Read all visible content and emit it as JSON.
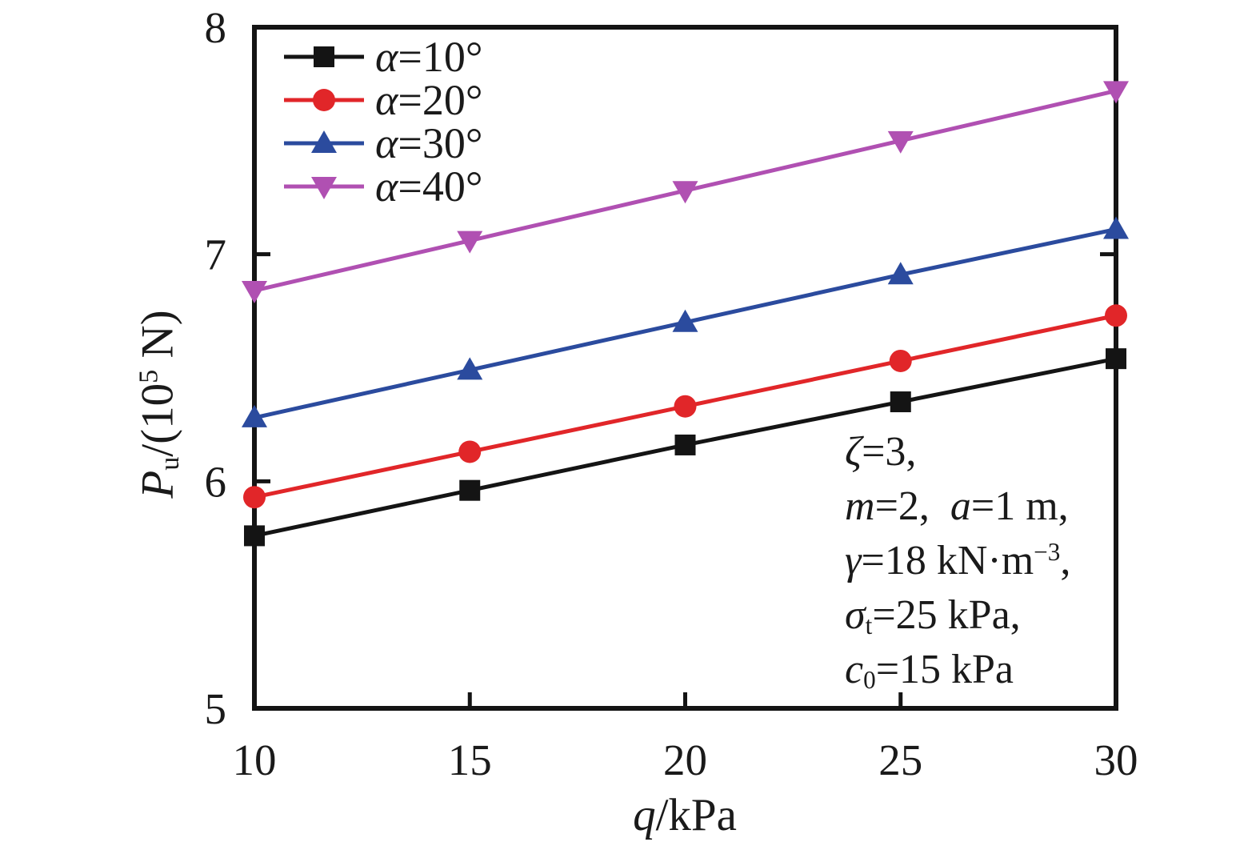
{
  "figure": {
    "background": "#ffffff",
    "text_color": "#1a1a1a",
    "frame_color": "#141414"
  },
  "chart_data": {
    "type": "line",
    "title": "",
    "x": [
      10,
      15,
      20,
      25,
      30
    ],
    "xlim": [
      10,
      30
    ],
    "ylim": [
      5,
      8
    ],
    "grid": false,
    "legend_position": "top-left-inside",
    "xlabel": "q/kPa",
    "ylabel": "Pu/(10^5 N)",
    "xlabel_segments": [
      {
        "t": "q",
        "i": true
      },
      {
        "t": "/kPa"
      }
    ],
    "ylabel_segments": [
      {
        "t": "P",
        "i": true
      },
      {
        "t": "u",
        "sub": true
      },
      {
        "t": "/(10"
      },
      {
        "t": "5",
        "sup": true
      },
      {
        "t": " N)"
      }
    ],
    "x_ticks": {
      "values": [
        10,
        15,
        20,
        25,
        30
      ],
      "labels": [
        "10",
        "15",
        "20",
        "25",
        "30"
      ],
      "marks": [
        15,
        20,
        25
      ]
    },
    "y_ticks": {
      "values": [
        5,
        6,
        7,
        8
      ],
      "labels": [
        "5",
        "6",
        "7",
        "8"
      ],
      "marks_left": [
        6,
        7
      ],
      "marks_right": [
        7
      ]
    },
    "series": [
      {
        "name": "alpha-10",
        "label": "α=10°",
        "label_segments": [
          {
            "t": "α",
            "i": true
          },
          {
            "t": "=10°"
          }
        ],
        "color": "#141414",
        "marker": "square",
        "values": [
          5.76,
          5.96,
          6.16,
          6.35,
          6.54
        ]
      },
      {
        "name": "alpha-20",
        "label": "α=20°",
        "label_segments": [
          {
            "t": "α",
            "i": true
          },
          {
            "t": "=20°"
          }
        ],
        "color": "#e12629",
        "marker": "circle",
        "values": [
          5.93,
          6.13,
          6.33,
          6.53,
          6.73
        ]
      },
      {
        "name": "alpha-30",
        "label": "α=30°",
        "label_segments": [
          {
            "t": "α",
            "i": true
          },
          {
            "t": "=30°"
          }
        ],
        "color": "#2b4b9e",
        "marker": "triangle-up",
        "values": [
          6.28,
          6.49,
          6.7,
          6.91,
          7.11
        ]
      },
      {
        "name": "alpha-40",
        "label": "α=40°",
        "label_segments": [
          {
            "t": "α",
            "i": true
          },
          {
            "t": "=40°"
          }
        ],
        "color": "#b050b2",
        "marker": "triangle-down",
        "values": [
          6.84,
          7.06,
          7.28,
          7.5,
          7.72
        ]
      }
    ],
    "annotation_lines": [
      [
        {
          "t": "ζ",
          "i": true
        },
        {
          "t": "=3, "
        }
      ],
      [
        {
          "t": "m",
          "i": true
        },
        {
          "t": "=2,  "
        },
        {
          "t": "a",
          "i": true
        },
        {
          "t": "=1 m, "
        }
      ],
      [
        {
          "t": "γ",
          "i": true
        },
        {
          "t": "=18 kN·m"
        },
        {
          "t": "−3",
          "sup": true
        },
        {
          "t": ", "
        }
      ],
      [
        {
          "t": "σ",
          "i": true
        },
        {
          "t": "t",
          "sub": true
        },
        {
          "t": "=25 kPa, "
        }
      ],
      [
        {
          "t": "c",
          "i": true
        },
        {
          "t": "0",
          "sub": true
        },
        {
          "t": "=15 kPa"
        }
      ]
    ]
  }
}
